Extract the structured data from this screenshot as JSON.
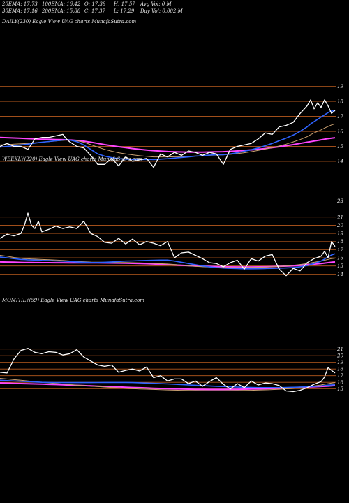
{
  "header": {
    "row1": [
      {
        "label": "20EMA: 17.73"
      },
      {
        "label": "100EMA: 16.42"
      },
      {
        "label": "O: 17.39"
      },
      {
        "label": "H: 17.57"
      },
      {
        "label": "Avg Vol: 0  M"
      }
    ],
    "row2": [
      {
        "label": "30EMA: 17.16"
      },
      {
        "label": "200EMA: 15.88"
      },
      {
        "label": "C: 17.37"
      },
      {
        "label": "L: 17.29"
      },
      {
        "label": "Day Vol: 0.002  M"
      }
    ]
  },
  "colors": {
    "background": "#000000",
    "gridline": "#b85a1e",
    "price": "#ffffff",
    "ema_short": "#2f63ff",
    "ema_mid": "#c9a070",
    "ema_long": "#ff45ff"
  },
  "chart_data": [
    {
      "type": "line",
      "title": "DAILY(230) Eagle   View  UAG charts MunafaSutra.com",
      "yticks": [
        19,
        18,
        17,
        16,
        15,
        14
      ],
      "ylim": [
        13.35,
        19.4
      ],
      "x": [
        0,
        10,
        20,
        30,
        40,
        50,
        60,
        70,
        80,
        90,
        95,
        100,
        110,
        120,
        130,
        140,
        150,
        160,
        170,
        180,
        190,
        200,
        210,
        220,
        230,
        240,
        250,
        260,
        270,
        280,
        290,
        300,
        310,
        320,
        330,
        340,
        350,
        360,
        370,
        380,
        390,
        400,
        410,
        420,
        430,
        440,
        445,
        450,
        455,
        460,
        465,
        470,
        475,
        480
      ],
      "series": [
        {
          "role": "price",
          "values": [
            15.0,
            15.2,
            15.0,
            15.0,
            14.8,
            15.5,
            15.6,
            15.6,
            15.7,
            15.8,
            15.5,
            15.3,
            15.0,
            14.9,
            14.4,
            13.8,
            13.8,
            14.2,
            13.7,
            14.3,
            14.0,
            14.1,
            14.2,
            13.6,
            14.5,
            14.3,
            14.6,
            14.4,
            14.7,
            14.6,
            14.4,
            14.6,
            14.5,
            13.8,
            14.8,
            15.0,
            15.1,
            15.2,
            15.5,
            15.9,
            15.8,
            16.3,
            16.4,
            16.6,
            17.2,
            17.7,
            18.1,
            17.5,
            17.9,
            17.6,
            18.1,
            17.7,
            17.2,
            17.4
          ]
        },
        {
          "role": "ema_short",
          "values": [
            14.95,
            15.0,
            15.05,
            15.1,
            15.15,
            15.22,
            15.28,
            15.33,
            15.38,
            15.42,
            15.44,
            15.43,
            15.32,
            15.1,
            14.8,
            14.5,
            14.35,
            14.25,
            14.18,
            14.15,
            14.13,
            14.12,
            14.13,
            14.12,
            14.15,
            14.18,
            14.22,
            14.26,
            14.3,
            14.35,
            14.38,
            14.42,
            14.45,
            14.45,
            14.5,
            14.58,
            14.68,
            14.78,
            14.9,
            15.05,
            15.2,
            15.38,
            15.55,
            15.75,
            16.0,
            16.3,
            16.5,
            16.65,
            16.8,
            16.95,
            17.1,
            17.25,
            17.35,
            17.38
          ]
        },
        {
          "role": "ema_mid",
          "values": [
            15.1,
            15.12,
            15.15,
            15.18,
            15.2,
            15.24,
            15.28,
            15.32,
            15.36,
            15.4,
            15.42,
            15.42,
            15.38,
            15.28,
            15.12,
            14.95,
            14.8,
            14.68,
            14.58,
            14.5,
            14.44,
            14.38,
            14.34,
            14.3,
            14.3,
            14.3,
            14.31,
            14.32,
            14.34,
            14.36,
            14.38,
            14.4,
            14.42,
            14.44,
            14.47,
            14.52,
            14.58,
            14.65,
            14.73,
            14.82,
            14.92,
            15.03,
            15.15,
            15.3,
            15.46,
            15.65,
            15.78,
            15.9,
            16.0,
            16.1,
            16.22,
            16.33,
            16.43,
            16.5
          ]
        },
        {
          "role": "ema_long",
          "values": [
            15.6,
            15.58,
            15.56,
            15.54,
            15.52,
            15.5,
            15.48,
            15.47,
            15.46,
            15.45,
            15.44,
            15.43,
            15.4,
            15.35,
            15.28,
            15.2,
            15.12,
            15.05,
            14.98,
            14.92,
            14.86,
            14.8,
            14.76,
            14.72,
            14.69,
            14.66,
            14.64,
            14.63,
            14.62,
            14.62,
            14.62,
            14.63,
            14.64,
            14.65,
            14.67,
            14.7,
            14.73,
            14.77,
            14.81,
            14.86,
            14.92,
            14.98,
            15.05,
            15.12,
            15.2,
            15.28,
            15.32,
            15.36,
            15.4,
            15.44,
            15.48,
            15.52,
            15.55,
            15.58
          ]
        }
      ]
    },
    {
      "type": "line",
      "title": "WEEKLY(220) Eagle   View  UAG charts MunafaSutra.com",
      "yticks": [
        23,
        21,
        20,
        19,
        18,
        17,
        16,
        15,
        14
      ],
      "ylim": [
        13.6,
        23.9
      ],
      "x": [
        0,
        10,
        20,
        30,
        35,
        40,
        45,
        50,
        55,
        60,
        70,
        80,
        90,
        100,
        110,
        120,
        130,
        140,
        150,
        160,
        170,
        180,
        190,
        200,
        210,
        220,
        230,
        240,
        250,
        260,
        270,
        280,
        290,
        300,
        310,
        320,
        330,
        340,
        350,
        360,
        370,
        380,
        390,
        400,
        410,
        420,
        430,
        440,
        450,
        460,
        465,
        470,
        475,
        480
      ],
      "series": [
        {
          "role": "price",
          "values": [
            18.4,
            18.9,
            18.7,
            19.0,
            20.0,
            21.5,
            20.0,
            19.6,
            20.5,
            19.2,
            19.5,
            19.9,
            19.6,
            19.8,
            19.6,
            20.5,
            19.0,
            18.6,
            17.9,
            17.8,
            18.4,
            17.7,
            18.3,
            17.6,
            18.0,
            17.8,
            17.5,
            18.0,
            16.0,
            16.6,
            16.7,
            16.3,
            15.9,
            15.4,
            15.3,
            14.9,
            15.4,
            15.7,
            14.6,
            15.9,
            15.6,
            16.2,
            16.4,
            14.6,
            13.8,
            14.7,
            14.4,
            15.4,
            15.9,
            16.2,
            16.8,
            16.0,
            18.0,
            17.4
          ]
        },
        {
          "role": "ema_short",
          "values": [
            16.1,
            16.0,
            15.9,
            15.8,
            15.78,
            15.75,
            15.74,
            15.72,
            15.7,
            15.68,
            15.65,
            15.62,
            15.6,
            15.55,
            15.5,
            15.45,
            15.42,
            15.42,
            15.45,
            15.5,
            15.55,
            15.6,
            15.62,
            15.65,
            15.68,
            15.7,
            15.72,
            15.72,
            15.6,
            15.45,
            15.3,
            15.15,
            15.0,
            14.9,
            14.8,
            14.74,
            14.7,
            14.68,
            14.65,
            14.65,
            14.66,
            14.68,
            14.7,
            14.72,
            14.75,
            14.8,
            14.9,
            15.05,
            15.3,
            15.6,
            15.85,
            16.1,
            16.35,
            16.5
          ]
        },
        {
          "role": "ema_mid",
          "values": [
            16.3,
            16.2,
            16.05,
            15.95,
            15.9,
            15.88,
            15.86,
            15.84,
            15.82,
            15.8,
            15.76,
            15.72,
            15.68,
            15.62,
            15.56,
            15.52,
            15.48,
            15.46,
            15.45,
            15.44,
            15.43,
            15.42,
            15.4,
            15.38,
            15.35,
            15.32,
            15.28,
            15.24,
            15.18,
            15.1,
            15.02,
            14.95,
            14.9,
            14.86,
            14.83,
            14.81,
            14.8,
            14.8,
            14.81,
            14.82,
            14.84,
            14.86,
            14.9,
            14.95,
            15.0,
            15.08,
            15.18,
            15.3,
            15.45,
            15.6,
            15.7,
            15.8,
            15.9,
            15.95
          ]
        },
        {
          "role": "ema_long",
          "values": [
            15.5,
            15.48,
            15.46,
            15.44,
            15.43,
            15.42,
            15.42,
            15.41,
            15.41,
            15.4,
            15.4,
            15.39,
            15.39,
            15.38,
            15.38,
            15.38,
            15.38,
            15.38,
            15.37,
            15.36,
            15.35,
            15.34,
            15.32,
            15.3,
            15.27,
            15.24,
            15.2,
            15.16,
            15.12,
            15.08,
            15.04,
            15.0,
            14.97,
            14.94,
            14.92,
            14.9,
            14.89,
            14.88,
            14.88,
            14.88,
            14.89,
            14.9,
            14.92,
            14.95,
            14.98,
            15.02,
            15.08,
            15.15,
            15.22,
            15.3,
            15.35,
            15.4,
            15.45,
            15.5
          ]
        }
      ]
    },
    {
      "type": "line",
      "title": "MONTHLY(59) Eagle   View  UAG charts MunafaSutra.com",
      "yticks": [
        21,
        20,
        19,
        18,
        17,
        16,
        15
      ],
      "ylim": [
        13.7,
        21.6
      ],
      "x": [
        0,
        10,
        20,
        30,
        40,
        50,
        60,
        70,
        80,
        90,
        100,
        110,
        120,
        130,
        140,
        150,
        160,
        170,
        180,
        190,
        200,
        210,
        220,
        230,
        240,
        250,
        260,
        270,
        280,
        290,
        300,
        310,
        320,
        330,
        340,
        350,
        360,
        370,
        380,
        390,
        400,
        410,
        420,
        430,
        440,
        450,
        460,
        465,
        470,
        475,
        480
      ],
      "series": [
        {
          "role": "price",
          "values": [
            17.5,
            17.4,
            19.5,
            20.8,
            21.1,
            20.5,
            20.3,
            20.6,
            20.5,
            20.1,
            20.3,
            20.9,
            19.8,
            19.2,
            18.6,
            18.4,
            18.6,
            17.5,
            17.8,
            18.0,
            17.7,
            18.3,
            16.7,
            17.0,
            16.2,
            16.5,
            16.5,
            15.8,
            16.2,
            15.4,
            16.1,
            16.7,
            15.7,
            15.0,
            15.8,
            15.2,
            16.2,
            15.6,
            15.9,
            15.8,
            15.5,
            14.7,
            14.6,
            14.8,
            15.2,
            15.7,
            16.1,
            16.8,
            18.2,
            17.8,
            17.4
          ]
        },
        {
          "role": "ema_short",
          "values": [
            16.3,
            16.25,
            16.2,
            16.15,
            16.1,
            16.05,
            16.0,
            15.98,
            15.96,
            15.95,
            15.95,
            15.95,
            15.95,
            15.95,
            15.96,
            15.97,
            15.98,
            15.98,
            15.97,
            15.95,
            15.92,
            15.88,
            15.84,
            15.8,
            15.75,
            15.7,
            15.65,
            15.6,
            15.55,
            15.5,
            15.45,
            15.4,
            15.36,
            15.32,
            15.28,
            15.25,
            15.22,
            15.2,
            15.2,
            15.2,
            15.2,
            15.22,
            15.25,
            15.28,
            15.32,
            15.38,
            15.45,
            15.5,
            15.56,
            15.6,
            15.63
          ]
        },
        {
          "role": "ema_mid",
          "values": [
            16.6,
            16.5,
            16.4,
            16.3,
            16.2,
            16.1,
            16.0,
            15.9,
            15.82,
            15.74,
            15.66,
            15.58,
            15.5,
            15.42,
            15.35,
            15.28,
            15.22,
            15.16,
            15.1,
            15.05,
            15.0,
            14.96,
            14.92,
            14.88,
            14.85,
            14.82,
            14.8,
            14.78,
            14.76,
            14.75,
            14.74,
            14.74,
            14.74,
            14.75,
            14.76,
            14.78,
            14.8,
            14.83,
            14.86,
            14.9,
            14.95,
            15.02,
            15.1,
            15.2,
            15.32,
            15.45,
            15.6,
            15.7,
            15.8,
            15.88,
            15.95
          ]
        },
        {
          "role": "ema_long",
          "values": [
            15.9,
            15.87,
            15.84,
            15.81,
            15.78,
            15.75,
            15.72,
            15.69,
            15.66,
            15.62,
            15.58,
            15.54,
            15.5,
            15.46,
            15.42,
            15.38,
            15.34,
            15.3,
            15.26,
            15.22,
            15.18,
            15.14,
            15.1,
            15.07,
            15.04,
            15.01,
            14.98,
            14.96,
            14.94,
            14.93,
            14.92,
            14.92,
            14.92,
            14.93,
            14.94,
            14.96,
            14.98,
            15.01,
            15.04,
            15.08,
            15.12,
            15.16,
            15.2,
            15.24,
            15.28,
            15.32,
            15.37,
            15.4,
            15.43,
            15.46,
            15.5
          ]
        }
      ]
    }
  ]
}
